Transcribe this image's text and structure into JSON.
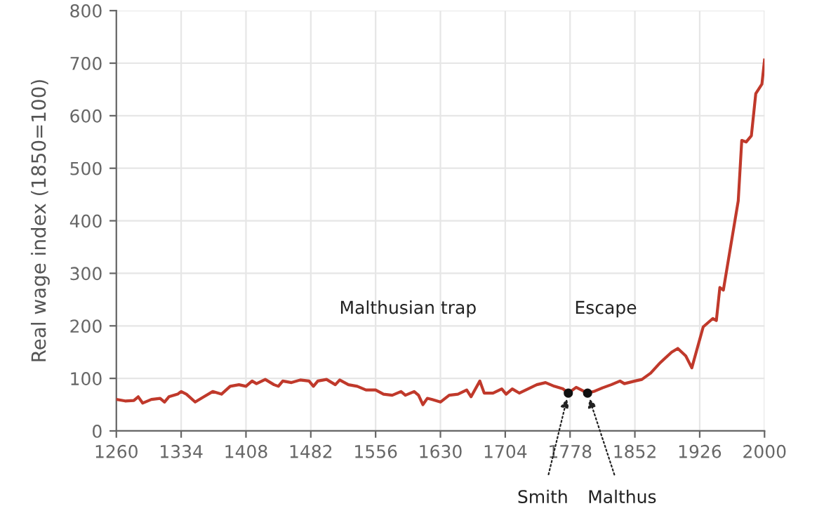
{
  "chart_data": {
    "type": "line",
    "ylabel": "Real wage index (1850=100)",
    "xlim": [
      1260,
      2000
    ],
    "xticks": [
      1260,
      1334,
      1408,
      1482,
      1556,
      1630,
      1704,
      1778,
      1852,
      1926,
      2000
    ],
    "ylim": [
      0,
      800
    ],
    "yticks": [
      0,
      100,
      200,
      300,
      400,
      500,
      600,
      700,
      800
    ],
    "grid": true,
    "legend": false,
    "series": [
      {
        "color": "#c0392b",
        "x": [
          1260,
          1270,
          1280,
          1285,
          1290,
          1300,
          1310,
          1315,
          1320,
          1330,
          1334,
          1340,
          1350,
          1360,
          1370,
          1380,
          1390,
          1400,
          1408,
          1415,
          1420,
          1430,
          1440,
          1445,
          1450,
          1460,
          1470,
          1480,
          1485,
          1490,
          1500,
          1510,
          1515,
          1525,
          1535,
          1545,
          1556,
          1565,
          1575,
          1585,
          1590,
          1600,
          1605,
          1610,
          1615,
          1620,
          1630,
          1640,
          1650,
          1660,
          1665,
          1670,
          1675,
          1680,
          1690,
          1700,
          1705,
          1712,
          1720,
          1730,
          1740,
          1750,
          1760,
          1770,
          1776,
          1785,
          1798,
          1805,
          1815,
          1825,
          1835,
          1840,
          1852,
          1860,
          1870,
          1881,
          1894,
          1901,
          1910,
          1917,
          1930,
          1941,
          1945,
          1949,
          1953,
          1970,
          1974,
          1979,
          1985,
          1990,
          1997,
          2000
        ],
        "values": [
          60,
          57,
          58,
          65,
          53,
          60,
          62,
          55,
          65,
          70,
          75,
          70,
          55,
          65,
          75,
          70,
          85,
          88,
          85,
          95,
          90,
          98,
          88,
          85,
          95,
          92,
          97,
          95,
          85,
          95,
          98,
          88,
          97,
          88,
          85,
          78,
          78,
          70,
          68,
          75,
          68,
          75,
          68,
          50,
          62,
          60,
          55,
          68,
          70,
          78,
          65,
          80,
          95,
          72,
          72,
          80,
          70,
          80,
          72,
          80,
          88,
          92,
          85,
          80,
          72,
          83,
          72,
          75,
          82,
          88,
          95,
          90,
          95,
          98,
          110,
          130,
          150,
          157,
          143,
          120,
          198,
          214,
          210,
          273,
          268,
          438,
          553,
          550,
          562,
          642,
          660,
          706
        ]
      },
      {
        "type": "scatter",
        "color": "#111111",
        "marker": "circle",
        "x": [
          1776,
          1798
        ],
        "values": [
          72,
          72
        ]
      }
    ],
    "annotations": [
      "Malthusian trap",
      "Escape",
      {
        "text": "Smith",
        "x": 1776,
        "y": 72
      },
      {
        "text": "Malthus",
        "x": 1798,
        "y": 72
      }
    ]
  }
}
